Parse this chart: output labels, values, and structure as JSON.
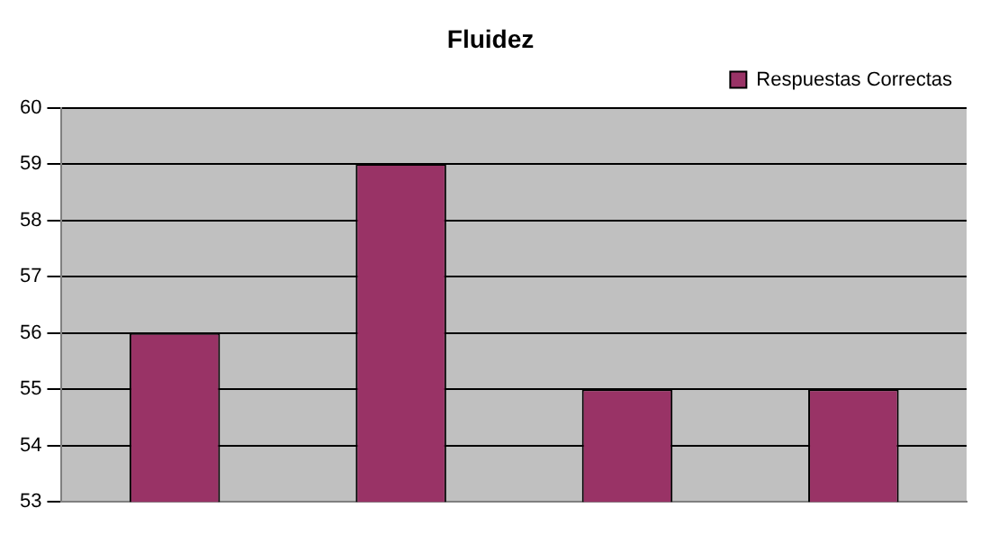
{
  "chart_data": {
    "type": "bar",
    "title": "Fluidez",
    "categories": [
      null,
      null,
      null,
      null
    ],
    "series": [
      {
        "name": "Respuestas Correctas",
        "color": "#993366",
        "values": [
          56,
          59,
          55,
          55
        ]
      }
    ],
    "ylim": [
      53,
      60
    ],
    "yticks": [
      53,
      54,
      55,
      56,
      57,
      58,
      59,
      60
    ],
    "grid": "y",
    "legend": "top right"
  }
}
